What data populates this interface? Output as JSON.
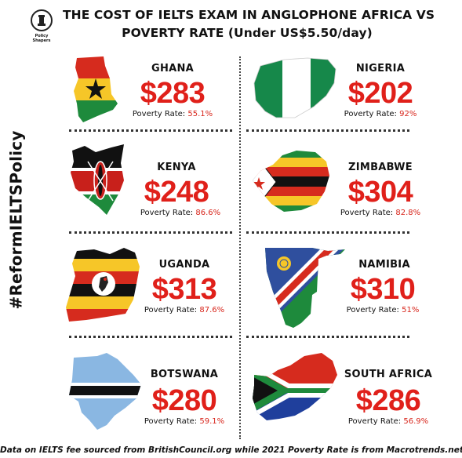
{
  "logo": {
    "text": "Policy Shapers"
  },
  "title": {
    "line1": "THE COST OF IELTS EXAM IN ANGLOPHONE AFRICA VS",
    "line2": "POVERTY RATE (Under US$5.50/day)"
  },
  "hashtag": "#ReformIELTSPolicy",
  "poverty_label": "Poverty Rate:",
  "countries": [
    {
      "name": "GHANA",
      "price": "$283",
      "poverty": "55.1%"
    },
    {
      "name": "NIGERIA",
      "price": "$202",
      "poverty": "92%"
    },
    {
      "name": "KENYA",
      "price": "$248",
      "poverty": "86.6%"
    },
    {
      "name": "ZIMBABWE",
      "price": "$304",
      "poverty": "82.8%"
    },
    {
      "name": "UGANDA",
      "price": "$313",
      "poverty": "87.6%"
    },
    {
      "name": "NAMIBIA",
      "price": "$310",
      "poverty": "51%"
    },
    {
      "name": "BOTSWANA",
      "price": "$280",
      "poverty": "59.1%"
    },
    {
      "name": "SOUTH AFRICA",
      "price": "$286",
      "poverty": "56.9%"
    }
  ],
  "footer": "Data on IELTS fee sourced from BritishCouncil.org while 2021 Poverty Rate is from Macrotrends.net"
}
